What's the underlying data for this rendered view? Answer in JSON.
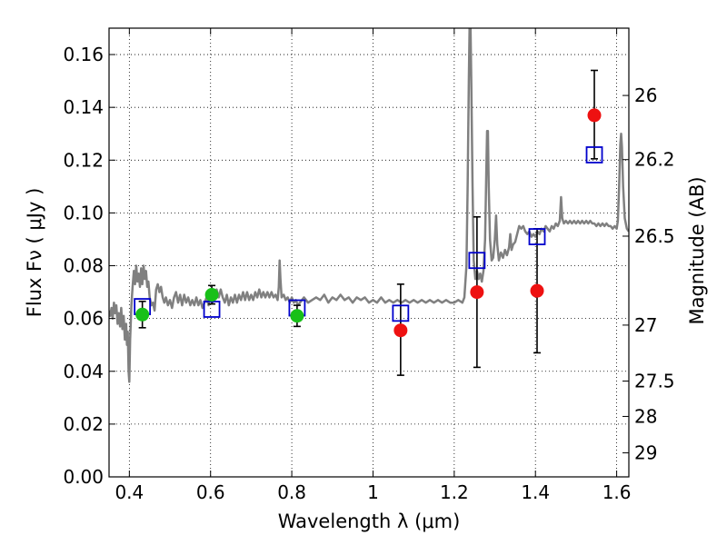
{
  "chart_data": {
    "type": "scatter",
    "xlabel": "Wavelength  λ (μm)",
    "ylabel": "Flux  Fν  ( μJy )",
    "ylabel_right": "Magnitude (AB)",
    "xlim": [
      0.35,
      1.63
    ],
    "ylim": [
      0.0,
      0.17
    ],
    "x_ticks": [
      0.4,
      0.6,
      0.8,
      1.0,
      1.2,
      1.4,
      1.6
    ],
    "x_tick_labels": [
      "0.4",
      "0.6",
      "0.8",
      "1",
      "1.2",
      "1.4",
      "1.6"
    ],
    "y_ticks": [
      0.0,
      0.02,
      0.04,
      0.06,
      0.08,
      0.1,
      0.12,
      0.14,
      0.16
    ],
    "y_tick_labels": [
      "0.00",
      "0.02",
      "0.04",
      "0.06",
      "0.08",
      "0.10",
      "0.12",
      "0.14",
      "0.16"
    ],
    "right_ticks": [
      {
        "label": "26",
        "flux": 0.1445
      },
      {
        "label": "26.2",
        "flux": 0.1202
      },
      {
        "label": "26.5",
        "flux": 0.0912
      },
      {
        "label": "27",
        "flux": 0.0575
      },
      {
        "label": "27.5",
        "flux": 0.0363
      },
      {
        "label": "28",
        "flux": 0.0229
      },
      {
        "label": "29",
        "flux": 0.0091
      }
    ],
    "grid": true,
    "series": [
      {
        "kind": "line",
        "color": "#808080",
        "points": [
          [
            0.35,
            0.063
          ],
          [
            0.353,
            0.061
          ],
          [
            0.356,
            0.064
          ],
          [
            0.359,
            0.06
          ],
          [
            0.362,
            0.066
          ],
          [
            0.365,
            0.062
          ],
          [
            0.368,
            0.065
          ],
          [
            0.371,
            0.058
          ],
          [
            0.374,
            0.062
          ],
          [
            0.377,
            0.057
          ],
          [
            0.38,
            0.064
          ],
          [
            0.383,
            0.056
          ],
          [
            0.386,
            0.061
          ],
          [
            0.389,
            0.052
          ],
          [
            0.392,
            0.058
          ],
          [
            0.394,
            0.05
          ],
          [
            0.396,
            0.055
          ],
          [
            0.398,
            0.04
          ],
          [
            0.4,
            0.036
          ],
          [
            0.402,
            0.052
          ],
          [
            0.405,
            0.065
          ],
          [
            0.408,
            0.072
          ],
          [
            0.411,
            0.078
          ],
          [
            0.414,
            0.073
          ],
          [
            0.417,
            0.08
          ],
          [
            0.42,
            0.074
          ],
          [
            0.423,
            0.077
          ],
          [
            0.426,
            0.072
          ],
          [
            0.429,
            0.079
          ],
          [
            0.432,
            0.073
          ],
          [
            0.435,
            0.08
          ],
          [
            0.438,
            0.075
          ],
          [
            0.441,
            0.078
          ],
          [
            0.444,
            0.072
          ],
          [
            0.447,
            0.074
          ],
          [
            0.45,
            0.068
          ],
          [
            0.454,
            0.065
          ],
          [
            0.458,
            0.066
          ],
          [
            0.462,
            0.063
          ],
          [
            0.466,
            0.071
          ],
          [
            0.47,
            0.073
          ],
          [
            0.474,
            0.07
          ],
          [
            0.478,
            0.072
          ],
          [
            0.482,
            0.068
          ],
          [
            0.486,
            0.066
          ],
          [
            0.49,
            0.068
          ],
          [
            0.495,
            0.065
          ],
          [
            0.5,
            0.067
          ],
          [
            0.505,
            0.064
          ],
          [
            0.51,
            0.068
          ],
          [
            0.515,
            0.07
          ],
          [
            0.52,
            0.066
          ],
          [
            0.525,
            0.069
          ],
          [
            0.53,
            0.065
          ],
          [
            0.535,
            0.069
          ],
          [
            0.54,
            0.066
          ],
          [
            0.545,
            0.068
          ],
          [
            0.55,
            0.065
          ],
          [
            0.555,
            0.067
          ],
          [
            0.56,
            0.065
          ],
          [
            0.565,
            0.068
          ],
          [
            0.57,
            0.065
          ],
          [
            0.575,
            0.067
          ],
          [
            0.58,
            0.064
          ],
          [
            0.585,
            0.066
          ],
          [
            0.59,
            0.068
          ],
          [
            0.595,
            0.065
          ],
          [
            0.6,
            0.069
          ],
          [
            0.605,
            0.066
          ],
          [
            0.61,
            0.069
          ],
          [
            0.615,
            0.071
          ],
          [
            0.62,
            0.068
          ],
          [
            0.625,
            0.071
          ],
          [
            0.63,
            0.068
          ],
          [
            0.635,
            0.066
          ],
          [
            0.64,
            0.069
          ],
          [
            0.645,
            0.065
          ],
          [
            0.65,
            0.068
          ],
          [
            0.655,
            0.066
          ],
          [
            0.66,
            0.069
          ],
          [
            0.665,
            0.066
          ],
          [
            0.67,
            0.069
          ],
          [
            0.675,
            0.067
          ],
          [
            0.68,
            0.07
          ],
          [
            0.685,
            0.067
          ],
          [
            0.69,
            0.07
          ],
          [
            0.695,
            0.067
          ],
          [
            0.7,
            0.069
          ],
          [
            0.705,
            0.067
          ],
          [
            0.71,
            0.07
          ],
          [
            0.715,
            0.068
          ],
          [
            0.72,
            0.071
          ],
          [
            0.725,
            0.068
          ],
          [
            0.73,
            0.07
          ],
          [
            0.735,
            0.068
          ],
          [
            0.74,
            0.07
          ],
          [
            0.745,
            0.068
          ],
          [
            0.75,
            0.07
          ],
          [
            0.755,
            0.068
          ],
          [
            0.76,
            0.069
          ],
          [
            0.765,
            0.067
          ],
          [
            0.768,
            0.072
          ],
          [
            0.77,
            0.082
          ],
          [
            0.772,
            0.075
          ],
          [
            0.775,
            0.068
          ],
          [
            0.78,
            0.069
          ],
          [
            0.785,
            0.067
          ],
          [
            0.79,
            0.068
          ],
          [
            0.795,
            0.066
          ],
          [
            0.8,
            0.068
          ],
          [
            0.805,
            0.066
          ],
          [
            0.81,
            0.067
          ],
          [
            0.815,
            0.065
          ],
          [
            0.82,
            0.066
          ],
          [
            0.83,
            0.068
          ],
          [
            0.84,
            0.066
          ],
          [
            0.85,
            0.067
          ],
          [
            0.86,
            0.068
          ],
          [
            0.87,
            0.067
          ],
          [
            0.88,
            0.069
          ],
          [
            0.89,
            0.066
          ],
          [
            0.9,
            0.068
          ],
          [
            0.91,
            0.067
          ],
          [
            0.92,
            0.069
          ],
          [
            0.93,
            0.067
          ],
          [
            0.94,
            0.068
          ],
          [
            0.95,
            0.066
          ],
          [
            0.96,
            0.068
          ],
          [
            0.97,
            0.067
          ],
          [
            0.98,
            0.068
          ],
          [
            0.99,
            0.066
          ],
          [
            1.0,
            0.067
          ],
          [
            1.01,
            0.066
          ],
          [
            1.02,
            0.068
          ],
          [
            1.03,
            0.066
          ],
          [
            1.04,
            0.067
          ],
          [
            1.05,
            0.066
          ],
          [
            1.06,
            0.067
          ],
          [
            1.07,
            0.066
          ],
          [
            1.08,
            0.067
          ],
          [
            1.09,
            0.066
          ],
          [
            1.1,
            0.067
          ],
          [
            1.11,
            0.066
          ],
          [
            1.12,
            0.067
          ],
          [
            1.13,
            0.066
          ],
          [
            1.14,
            0.067
          ],
          [
            1.15,
            0.066
          ],
          [
            1.16,
            0.067
          ],
          [
            1.17,
            0.066
          ],
          [
            1.18,
            0.067
          ],
          [
            1.19,
            0.066
          ],
          [
            1.2,
            0.066
          ],
          [
            1.21,
            0.067
          ],
          [
            1.22,
            0.066
          ],
          [
            1.225,
            0.068
          ],
          [
            1.23,
            0.08
          ],
          [
            1.233,
            0.11
          ],
          [
            1.236,
            0.15
          ],
          [
            1.238,
            0.172
          ],
          [
            1.24,
            0.172
          ],
          [
            1.242,
            0.15
          ],
          [
            1.245,
            0.11
          ],
          [
            1.248,
            0.082
          ],
          [
            1.252,
            0.075
          ],
          [
            1.256,
            0.078
          ],
          [
            1.26,
            0.075
          ],
          [
            1.264,
            0.077
          ],
          [
            1.268,
            0.074
          ],
          [
            1.272,
            0.078
          ],
          [
            1.276,
            0.09
          ],
          [
            1.279,
            0.115
          ],
          [
            1.281,
            0.131
          ],
          [
            1.283,
            0.131
          ],
          [
            1.285,
            0.11
          ],
          [
            1.288,
            0.09
          ],
          [
            1.292,
            0.082
          ],
          [
            1.296,
            0.083
          ],
          [
            1.3,
            0.09
          ],
          [
            1.303,
            0.099
          ],
          [
            1.306,
            0.088
          ],
          [
            1.31,
            0.082
          ],
          [
            1.315,
            0.085
          ],
          [
            1.32,
            0.083
          ],
          [
            1.325,
            0.086
          ],
          [
            1.33,
            0.084
          ],
          [
            1.335,
            0.087
          ],
          [
            1.338,
            0.092
          ],
          [
            1.341,
            0.086
          ],
          [
            1.345,
            0.088
          ],
          [
            1.35,
            0.089
          ],
          [
            1.355,
            0.092
          ],
          [
            1.36,
            0.095
          ],
          [
            1.365,
            0.094
          ],
          [
            1.37,
            0.095
          ],
          [
            1.375,
            0.093
          ],
          [
            1.38,
            0.092
          ],
          [
            1.385,
            0.093
          ],
          [
            1.39,
            0.091
          ],
          [
            1.395,
            0.092
          ],
          [
            1.4,
            0.091
          ],
          [
            1.405,
            0.093
          ],
          [
            1.41,
            0.092
          ],
          [
            1.415,
            0.094
          ],
          [
            1.42,
            0.093
          ],
          [
            1.425,
            0.095
          ],
          [
            1.43,
            0.094
          ],
          [
            1.435,
            0.093
          ],
          [
            1.44,
            0.095
          ],
          [
            1.445,
            0.094
          ],
          [
            1.45,
            0.096
          ],
          [
            1.455,
            0.095
          ],
          [
            1.46,
            0.097
          ],
          [
            1.463,
            0.106
          ],
          [
            1.466,
            0.098
          ],
          [
            1.47,
            0.096
          ],
          [
            1.475,
            0.097
          ],
          [
            1.48,
            0.096
          ],
          [
            1.485,
            0.097
          ],
          [
            1.49,
            0.096
          ],
          [
            1.495,
            0.097
          ],
          [
            1.5,
            0.096
          ],
          [
            1.505,
            0.097
          ],
          [
            1.51,
            0.096
          ],
          [
            1.515,
            0.097
          ],
          [
            1.52,
            0.096
          ],
          [
            1.525,
            0.097
          ],
          [
            1.53,
            0.096
          ],
          [
            1.535,
            0.097
          ],
          [
            1.54,
            0.096
          ],
          [
            1.545,
            0.096
          ],
          [
            1.55,
            0.095
          ],
          [
            1.555,
            0.096
          ],
          [
            1.56,
            0.095
          ],
          [
            1.565,
            0.096
          ],
          [
            1.57,
            0.095
          ],
          [
            1.575,
            0.096
          ],
          [
            1.58,
            0.095
          ],
          [
            1.585,
            0.095
          ],
          [
            1.59,
            0.094
          ],
          [
            1.595,
            0.095
          ],
          [
            1.6,
            0.094
          ],
          [
            1.603,
            0.097
          ],
          [
            1.606,
            0.11
          ],
          [
            1.609,
            0.126
          ],
          [
            1.611,
            0.13
          ],
          [
            1.613,
            0.125
          ],
          [
            1.616,
            0.11
          ],
          [
            1.62,
            0.098
          ],
          [
            1.625,
            0.094
          ],
          [
            1.63,
            0.093
          ]
        ]
      },
      {
        "kind": "squares",
        "color": "#0000cc",
        "points": [
          [
            0.432,
            0.0645
          ],
          [
            0.603,
            0.0635
          ],
          [
            0.813,
            0.064
          ],
          [
            1.068,
            0.062
          ],
          [
            1.256,
            0.082
          ],
          [
            1.404,
            0.091
          ],
          [
            1.545,
            0.122
          ]
        ]
      },
      {
        "kind": "points",
        "color": "#18c018",
        "points": [
          {
            "x": 0.432,
            "y": 0.0615,
            "err": [
              0.0565,
              0.0665
            ]
          },
          {
            "x": 0.603,
            "y": 0.069,
            "err": [
              0.0655,
              0.0725
            ]
          },
          {
            "x": 0.813,
            "y": 0.061,
            "err": [
              0.057,
              0.065
            ]
          }
        ]
      },
      {
        "kind": "points",
        "color": "#ee1111",
        "points": [
          {
            "x": 1.068,
            "y": 0.0555,
            "err": [
              0.0385,
              0.073
            ]
          },
          {
            "x": 1.256,
            "y": 0.07,
            "err": [
              0.0415,
              0.0985
            ]
          },
          {
            "x": 1.404,
            "y": 0.0705,
            "err": [
              0.047,
              0.094
            ]
          },
          {
            "x": 1.545,
            "y": 0.137,
            "err": [
              0.1205,
              0.154
            ]
          }
        ]
      }
    ]
  }
}
